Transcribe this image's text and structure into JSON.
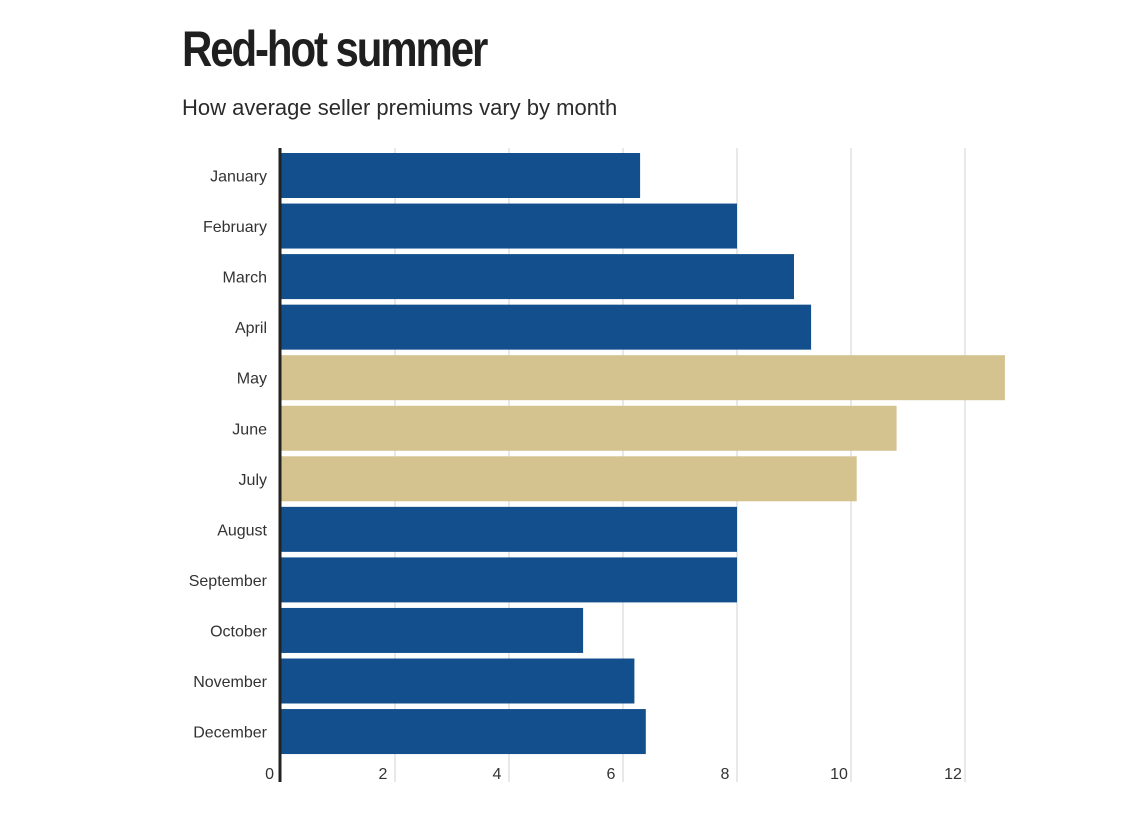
{
  "chart_data": {
    "type": "bar",
    "orientation": "horizontal",
    "title": "Red-hot summer",
    "subtitle": "How average seller premiums vary by month",
    "xlabel": "",
    "ylabel": "",
    "categories": [
      "January",
      "February",
      "March",
      "April",
      "May",
      "June",
      "July",
      "August",
      "September",
      "October",
      "November",
      "December"
    ],
    "values": [
      6.3,
      8.0,
      9.0,
      9.3,
      12.7,
      10.8,
      10.1,
      8.0,
      8.0,
      5.3,
      6.2,
      6.4
    ],
    "highlighted": [
      false,
      false,
      false,
      false,
      true,
      true,
      true,
      false,
      false,
      false,
      false,
      false
    ],
    "xlim": [
      0,
      13
    ],
    "ticks": [
      "0",
      "2",
      "4",
      "6",
      "8",
      "10",
      "12"
    ],
    "grid": true,
    "colors": {
      "default": "#124f8c",
      "highlight": "#d4c38f",
      "gridline": "#d9d9d9",
      "axis": "#222222"
    }
  }
}
